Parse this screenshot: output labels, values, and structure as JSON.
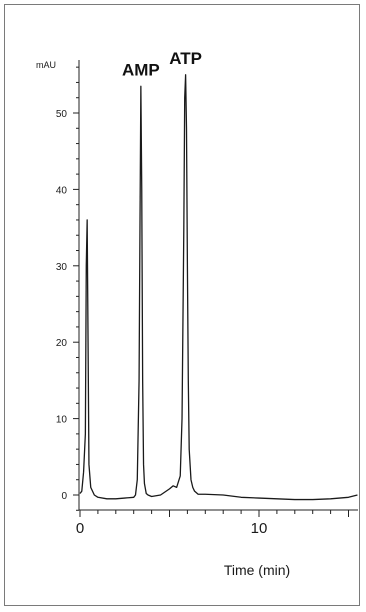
{
  "chart_data": {
    "type": "line",
    "title": "",
    "xlabel": "Time (min)",
    "ylabel": "mAU",
    "xlim": [
      0,
      15.5
    ],
    "ylim": [
      -3,
      57
    ],
    "x_ticks": [
      0,
      10
    ],
    "y_ticks": [
      0,
      10,
      20,
      30,
      40,
      50
    ],
    "grid": false,
    "annotations": [
      {
        "text": "AMP",
        "x": 3.4,
        "y": 53.5
      },
      {
        "text": "ATP",
        "x": 5.9,
        "y": 55.0
      }
    ],
    "series": [
      {
        "x": [
          0.0,
          0.1,
          0.2,
          0.3,
          0.35,
          0.4,
          0.45,
          0.5,
          0.6,
          0.8,
          1.0,
          1.5,
          2.0,
          2.5,
          3.0,
          3.1,
          3.2,
          3.3,
          3.35,
          3.4,
          3.45,
          3.5,
          3.55,
          3.6,
          3.7,
          3.8,
          4.0,
          4.5,
          5.0,
          5.2,
          5.4,
          5.6,
          5.7,
          5.8,
          5.85,
          5.9,
          5.95,
          6.0,
          6.05,
          6.1,
          6.2,
          6.3,
          6.4,
          6.6,
          7.0,
          8.0,
          9.0,
          10.0,
          11.0,
          12.0,
          13.0,
          14.0,
          15.0,
          15.5
        ],
        "y": [
          0.2,
          0.5,
          3.0,
          8.0,
          30.0,
          36.0,
          20.0,
          4.0,
          1.0,
          0.0,
          -0.3,
          -0.5,
          -0.5,
          -0.4,
          -0.3,
          0.0,
          2.0,
          15.0,
          35.0,
          53.5,
          40.0,
          15.0,
          4.0,
          1.5,
          0.2,
          0.0,
          -0.2,
          0.0,
          0.8,
          1.2,
          1.0,
          2.5,
          10.0,
          35.0,
          52.0,
          55.0,
          48.0,
          30.0,
          15.0,
          6.0,
          2.0,
          1.0,
          0.5,
          0.1,
          0.1,
          0.0,
          -0.3,
          -0.4,
          -0.5,
          -0.6,
          -0.6,
          -0.5,
          -0.3,
          0.0
        ]
      }
    ]
  }
}
